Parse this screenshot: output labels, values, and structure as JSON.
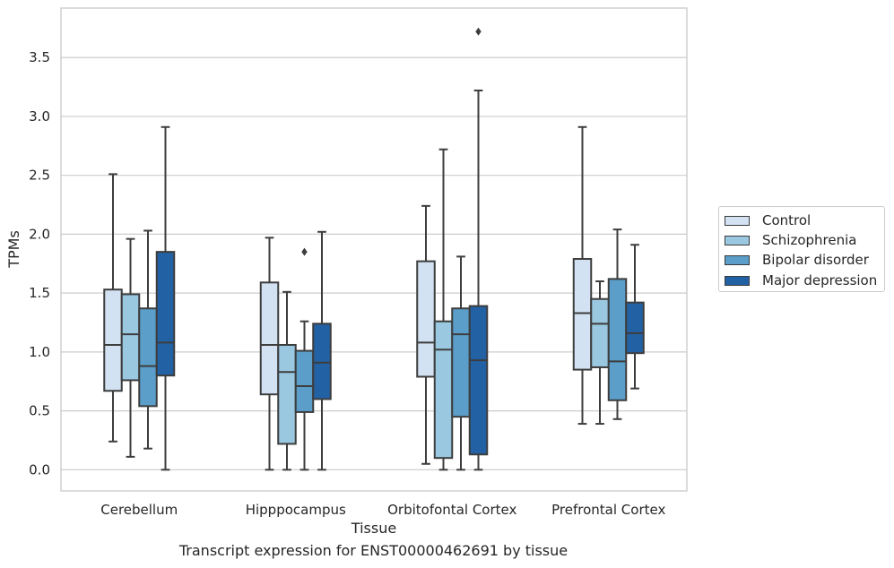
{
  "caption": "Transcript expression for ENST00000462691 by tissue",
  "legend": {
    "items": [
      {
        "label": "Control",
        "color": "#d2e2f2"
      },
      {
        "label": "Schizophrenia",
        "color": "#9ac8e0"
      },
      {
        "label": "Bipolar disorder",
        "color": "#5a9ec9"
      },
      {
        "label": "Major depression",
        "color": "#2361a5"
      }
    ]
  },
  "chart_data": {
    "type": "box",
    "xlabel": "Tissue",
    "ylabel": "TPMs",
    "ylim": [
      -0.18,
      3.92
    ],
    "yticks": [
      0.0,
      0.5,
      1.0,
      1.5,
      2.0,
      2.5,
      3.0,
      3.5
    ],
    "ytick_labels": [
      "0.0",
      "0.5",
      "1.0",
      "1.5",
      "2.0",
      "2.5",
      "3.0",
      "3.5"
    ],
    "grid": "horizontal",
    "legend_position": "outside-right",
    "categories": [
      "Cerebellum",
      "Hipppocampus",
      "Orbitofontal Cortex",
      "Prefrontal Cortex"
    ],
    "series": [
      {
        "name": "Control",
        "color": "#d2e2f2",
        "boxes": [
          {
            "whisker_low": 0.24,
            "q1": 0.67,
            "median": 1.06,
            "q3": 1.53,
            "whisker_high": 2.51,
            "outliers": []
          },
          {
            "whisker_low": 0.0,
            "q1": 0.64,
            "median": 1.06,
            "q3": 1.59,
            "whisker_high": 1.97,
            "outliers": []
          },
          {
            "whisker_low": 0.05,
            "q1": 0.79,
            "median": 1.08,
            "q3": 1.77,
            "whisker_high": 2.24,
            "outliers": []
          },
          {
            "whisker_low": 0.39,
            "q1": 0.85,
            "median": 1.33,
            "q3": 1.79,
            "whisker_high": 2.91,
            "outliers": []
          }
        ]
      },
      {
        "name": "Schizophrenia",
        "color": "#9ac8e0",
        "boxes": [
          {
            "whisker_low": 0.11,
            "q1": 0.76,
            "median": 1.15,
            "q3": 1.49,
            "whisker_high": 1.96,
            "outliers": []
          },
          {
            "whisker_low": 0.0,
            "q1": 0.22,
            "median": 0.83,
            "q3": 1.06,
            "whisker_high": 1.51,
            "outliers": []
          },
          {
            "whisker_low": 0.0,
            "q1": 0.1,
            "median": 1.02,
            "q3": 1.26,
            "whisker_high": 2.72,
            "outliers": []
          },
          {
            "whisker_low": 0.39,
            "q1": 0.87,
            "median": 1.24,
            "q3": 1.45,
            "whisker_high": 1.6,
            "outliers": []
          }
        ]
      },
      {
        "name": "Bipolar disorder",
        "color": "#5a9ec9",
        "boxes": [
          {
            "whisker_low": 0.18,
            "q1": 0.54,
            "median": 0.88,
            "q3": 1.37,
            "whisker_high": 2.03,
            "outliers": []
          },
          {
            "whisker_low": 0.0,
            "q1": 0.49,
            "median": 0.71,
            "q3": 1.01,
            "whisker_high": 1.26,
            "outliers": [
              1.85
            ]
          },
          {
            "whisker_low": 0.0,
            "q1": 0.45,
            "median": 1.15,
            "q3": 1.37,
            "whisker_high": 1.81,
            "outliers": []
          },
          {
            "whisker_low": 0.43,
            "q1": 0.59,
            "median": 0.92,
            "q3": 1.62,
            "whisker_high": 2.04,
            "outliers": []
          }
        ]
      },
      {
        "name": "Major depression",
        "color": "#2361a5",
        "boxes": [
          {
            "whisker_low": 0.0,
            "q1": 0.8,
            "median": 1.08,
            "q3": 1.85,
            "whisker_high": 2.91,
            "outliers": []
          },
          {
            "whisker_low": 0.0,
            "q1": 0.6,
            "median": 0.91,
            "q3": 1.24,
            "whisker_high": 2.02,
            "outliers": []
          },
          {
            "whisker_low": 0.0,
            "q1": 0.13,
            "median": 0.93,
            "q3": 1.39,
            "whisker_high": 3.22,
            "outliers": [
              3.72
            ]
          },
          {
            "whisker_low": 0.69,
            "q1": 0.99,
            "median": 1.16,
            "q3": 1.42,
            "whisker_high": 1.91,
            "outliers": []
          }
        ]
      }
    ]
  }
}
